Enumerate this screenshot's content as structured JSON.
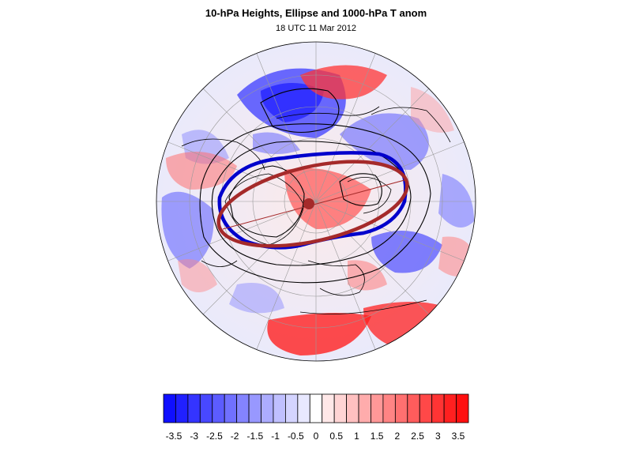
{
  "title": "10-hPa Heights, Ellipse and 1000-hPa T anom",
  "subtitle": "18 UTC 11 Mar 2012",
  "colorbar": {
    "colors": [
      "#0f0fff",
      "#2020ff",
      "#3434ff",
      "#4848ff",
      "#5c5cff",
      "#7070ff",
      "#8484ff",
      "#9898ff",
      "#acacff",
      "#c0c0ff",
      "#d4d4ff",
      "#e8e8ff",
      "#ffffff",
      "#ffe8e8",
      "#ffd4d4",
      "#ffc0c0",
      "#ffacac",
      "#ff9898",
      "#ff8484",
      "#ff7070",
      "#ff5c5c",
      "#ff4848",
      "#ff3434",
      "#ff2020",
      "#ff0f0f"
    ],
    "tick_labels": [
      "-3.5",
      "-3",
      "-2.5",
      "-2",
      "-1.5",
      "-1",
      "-0.5",
      "0",
      "0.5",
      "1",
      "1.5",
      "2",
      "2.5",
      "3",
      "3.5"
    ]
  },
  "map": {
    "ellipse_color": "#a52a2a",
    "polar_vortex_edge_color": "#0000cc",
    "height_contour_color": "#000000"
  }
}
